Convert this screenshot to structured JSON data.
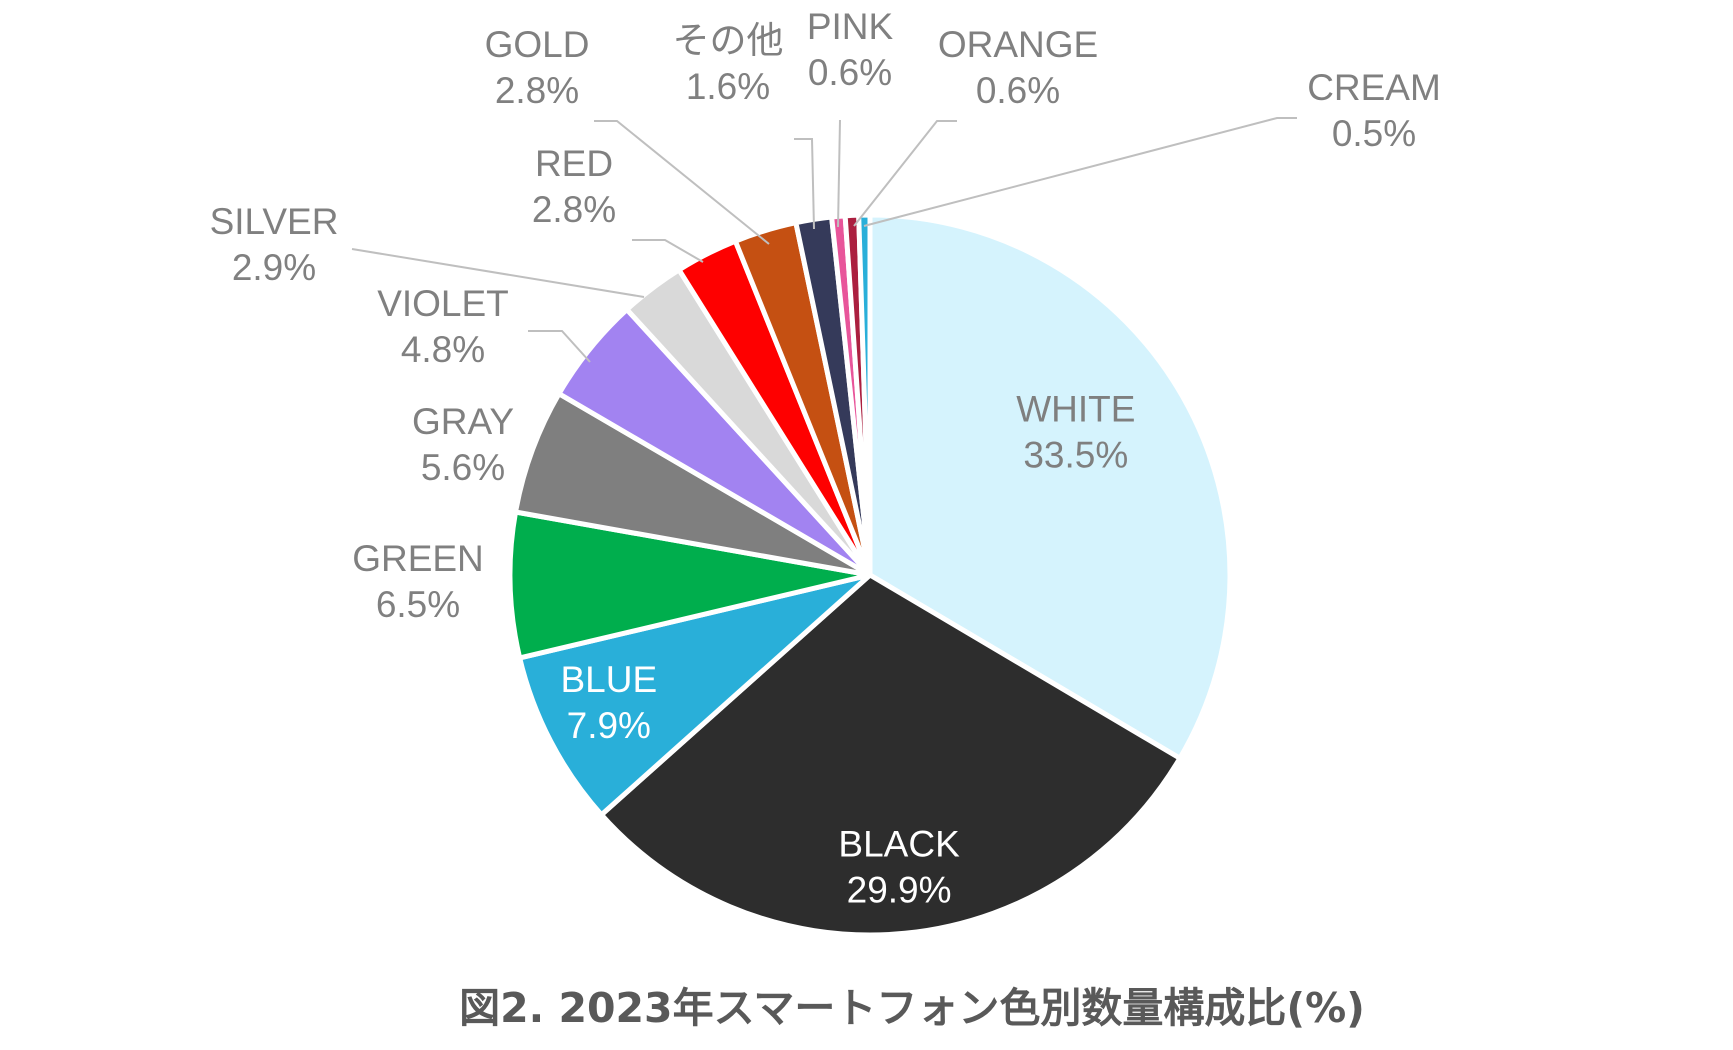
{
  "chart_data": {
    "type": "pie",
    "title": "図2. 2023年スマートフォン色別数量構成比(%)",
    "start_angle_deg": 0,
    "direction": "clockwise",
    "slices": [
      {
        "label": "WHITE",
        "value": 33.5,
        "value_label": "33.5%",
        "color": "#d5f3fd",
        "label_color": "#7f7f7f"
      },
      {
        "label": "BLACK",
        "value": 29.9,
        "value_label": "29.9%",
        "color": "#2d2d2d",
        "label_color": "#ffffff"
      },
      {
        "label": "BLUE",
        "value": 7.9,
        "value_label": "7.9%",
        "color": "#29afd9",
        "label_color": "#ffffff"
      },
      {
        "label": "GREEN",
        "value": 6.5,
        "value_label": "6.5%",
        "color": "#00ae4d",
        "label_color": "#808080"
      },
      {
        "label": "GRAY",
        "value": 5.6,
        "value_label": "5.6%",
        "color": "#7f7f7f",
        "label_color": "#808080"
      },
      {
        "label": "VIOLET",
        "value": 4.8,
        "value_label": "4.8%",
        "color": "#a283f1",
        "label_color": "#808080"
      },
      {
        "label": "SILVER",
        "value": 2.9,
        "value_label": "2.9%",
        "color": "#d9d9d9",
        "label_color": "#808080"
      },
      {
        "label": "RED",
        "value": 2.8,
        "value_label": "2.8%",
        "color": "#fe0000",
        "label_color": "#808080"
      },
      {
        "label": "GOLD",
        "value": 2.8,
        "value_label": "2.8%",
        "color": "#c55012",
        "label_color": "#808080"
      },
      {
        "label": "その他",
        "value": 1.6,
        "value_label": "1.6%",
        "color": "#353a5a",
        "label_color": "#808080"
      },
      {
        "label": "PINK",
        "value": 0.6,
        "value_label": "0.6%",
        "color": "#e8559a",
        "label_color": "#808080"
      },
      {
        "label": "ORANGE",
        "value": 0.6,
        "value_label": "0.6%",
        "color": "#ab1f3f",
        "label_color": "#808080"
      },
      {
        "label": "CREAM",
        "value": 0.5,
        "value_label": "0.5%",
        "color": "#29afd9",
        "label_color": "#808080"
      }
    ]
  }
}
